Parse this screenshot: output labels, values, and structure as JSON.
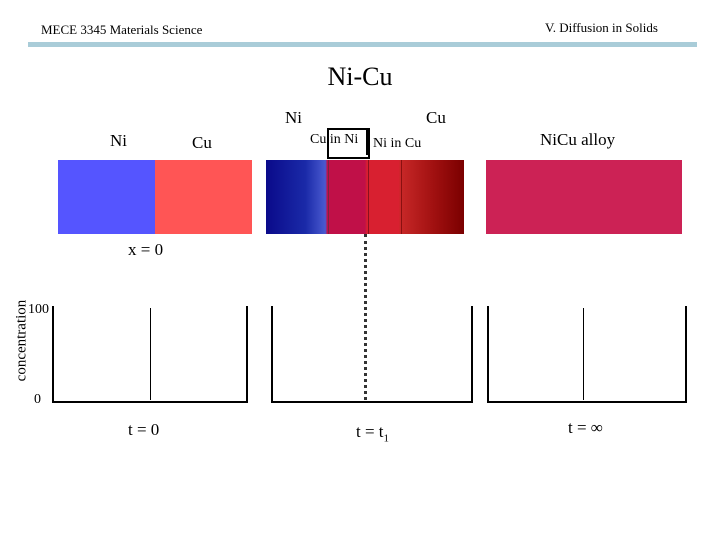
{
  "header": {
    "course": "MECE 3345 Materials Science",
    "chapter": "V. Diffusion in Solids",
    "bar_color": "#a9ccd8"
  },
  "title": "Ni-Cu",
  "panel_initial": {
    "label_left": "Ni",
    "label_right": "Cu",
    "left_color": "#5555ff",
    "right_color": "#ff5555",
    "position_label": "x = 0",
    "time_label": "t = 0"
  },
  "panel_intermediate": {
    "label_ni": "Ni",
    "label_cu": "Cu",
    "label_cu_in_ni": "Cu in Ni",
    "label_ni_in_cu": "Ni in Cu",
    "time_label_main": "t = t",
    "time_label_sub": "1"
  },
  "panel_final": {
    "label": "NiCu alloy",
    "color": "#cc2255",
    "time_label": "t = ∞"
  },
  "axis": {
    "ylabel": "concentration",
    "ymax_label": "100",
    "ymin_label": "0"
  }
}
